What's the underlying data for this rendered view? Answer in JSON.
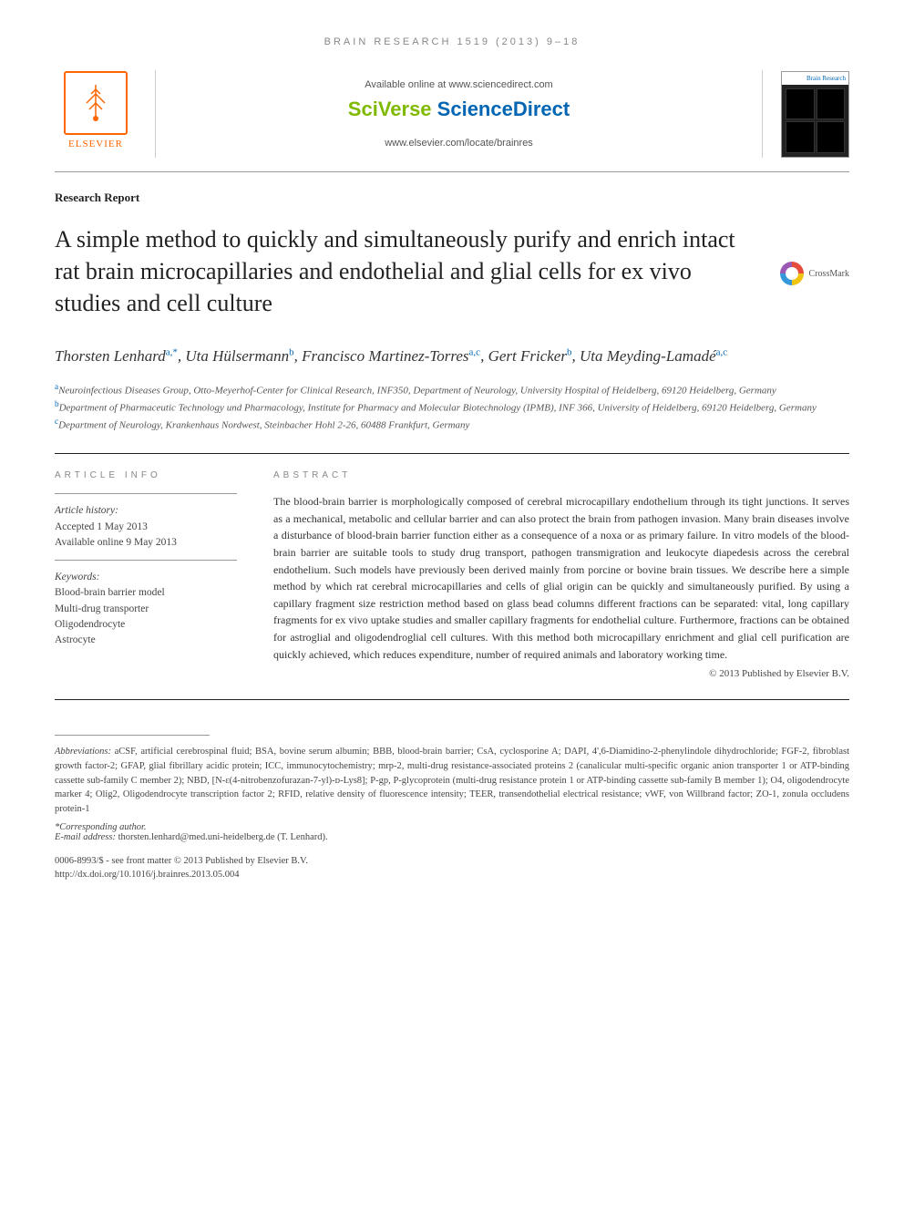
{
  "running_head": "BRAIN RESEARCH 1519 (2013) 9–18",
  "header": {
    "publisher_logo_text": "ELSEVIER",
    "available_text": "Available online at www.sciencedirect.com",
    "platform_sci": "SciVerse ",
    "platform_direct": "ScienceDirect",
    "journal_url": "www.elsevier.com/locate/brainres",
    "cover_label": "Brain Research"
  },
  "article_type": "Research Report",
  "title": "A simple method to quickly and simultaneously purify and enrich intact rat brain microcapillaries and endothelial and glial cells for ex vivo studies and cell culture",
  "crossmark_label": "CrossMark",
  "authors_html": "Thorsten Lenhard<sup>a,*</sup>, Uta Hülsermann<sup>b</sup>, Francisco Martinez-Torres<sup>a,c</sup>, Gert Fricker<sup>b</sup>, Uta Meyding-Lamadé<sup>a,c</sup>",
  "affiliations": [
    {
      "sup": "a",
      "text": "Neuroinfectious Diseases Group, Otto-Meyerhof-Center for Clinical Research, INF350, Department of Neurology, University Hospital of Heidelberg, 69120 Heidelberg, Germany"
    },
    {
      "sup": "b",
      "text": "Department of Pharmaceutic Technology und Pharmacology, Institute for Pharmacy and Molecular Biotechnology (IPMB), INF 366, University of Heidelberg, 69120 Heidelberg, Germany"
    },
    {
      "sup": "c",
      "text": "Department of Neurology, Krankenhaus Nordwest, Steinbacher Hohl 2-26, 60488 Frankfurt, Germany"
    }
  ],
  "info": {
    "section_label": "ARTICLE INFO",
    "history_label": "Article history:",
    "accepted": "Accepted 1 May 2013",
    "online": "Available online 9 May 2013",
    "keywords_label": "Keywords:",
    "keywords": [
      "Blood-brain barrier model",
      "Multi-drug transporter",
      "Oligodendrocyte",
      "Astrocyte"
    ]
  },
  "abstract": {
    "section_label": "ABSTRACT",
    "text": "The blood-brain barrier is morphologically composed of cerebral microcapillary endothelium through its tight junctions. It serves as a mechanical, metabolic and cellular barrier and can also protect the brain from pathogen invasion. Many brain diseases involve a disturbance of blood-brain barrier function either as a consequence of a noxa or as primary failure. In vitro models of the blood-brain barrier are suitable tools to study drug transport, pathogen transmigration and leukocyte diapedesis across the cerebral endothelium. Such models have previously been derived mainly from porcine or bovine brain tissues. We describe here a simple method by which rat cerebral microcapillaries and cells of glial origin can be quickly and simultaneously purified. By using a capillary fragment size restriction method based on glass bead columns different fractions can be separated: vital, long capillary fragments for ex vivo uptake studies and smaller capillary fragments for endothelial culture. Furthermore, fractions can be obtained for astroglial and oligodendroglial cell cultures. With this method both microcapillary enrichment and glial cell purification are quickly achieved, which reduces expenditure, number of required animals and laboratory working time.",
    "copyright": "© 2013 Published by Elsevier B.V."
  },
  "abbreviations": {
    "label": "Abbreviations:",
    "text": "aCSF, artificial cerebrospinal fluid; BSA, bovine serum albumin; BBB, blood-brain barrier; CsA, cyclosporine A; DAPI, 4',6-Diamidino-2-phenylindole dihydrochloride; FGF-2, fibroblast growth factor-2; GFAP, glial fibrillary acidic protein; ICC, immunocytochemistry; mrp-2, multi-drug resistance-associated proteins 2 (canalicular multi-specific organic anion transporter 1 or ATP-binding cassette sub-family C member 2); NBD, [N-ε(4-nitrobenzofurazan-7-yl)-ᴅ-Lys8]; P-gp, P-glycoprotein (multi-drug resistance protein 1 or ATP-binding cassette sub-family B member 1); O4, oligodendrocyte marker 4; Olig2, Oligodendrocyte transcription factor 2; RFID, relative density of fluorescence intensity; TEER, transendothelial electrical resistance; vWF, von Willbrand factor; ZO-1, zonula occludens protein-1"
  },
  "corresponding": {
    "label": "*Corresponding author.",
    "email_label": "E-mail address:",
    "email": "thorsten.lenhard@med.uni-heidelberg.de (T. Lenhard)."
  },
  "doi": {
    "issn_line": "0006-8993/$ - see front matter © 2013 Published by Elsevier B.V.",
    "doi_line": "http://dx.doi.org/10.1016/j.brainres.2013.05.004"
  },
  "colors": {
    "accent_orange": "#ff6600",
    "accent_blue": "#0066b3",
    "accent_green": "#7fba00",
    "text_gray": "#555",
    "rule": "#999"
  }
}
